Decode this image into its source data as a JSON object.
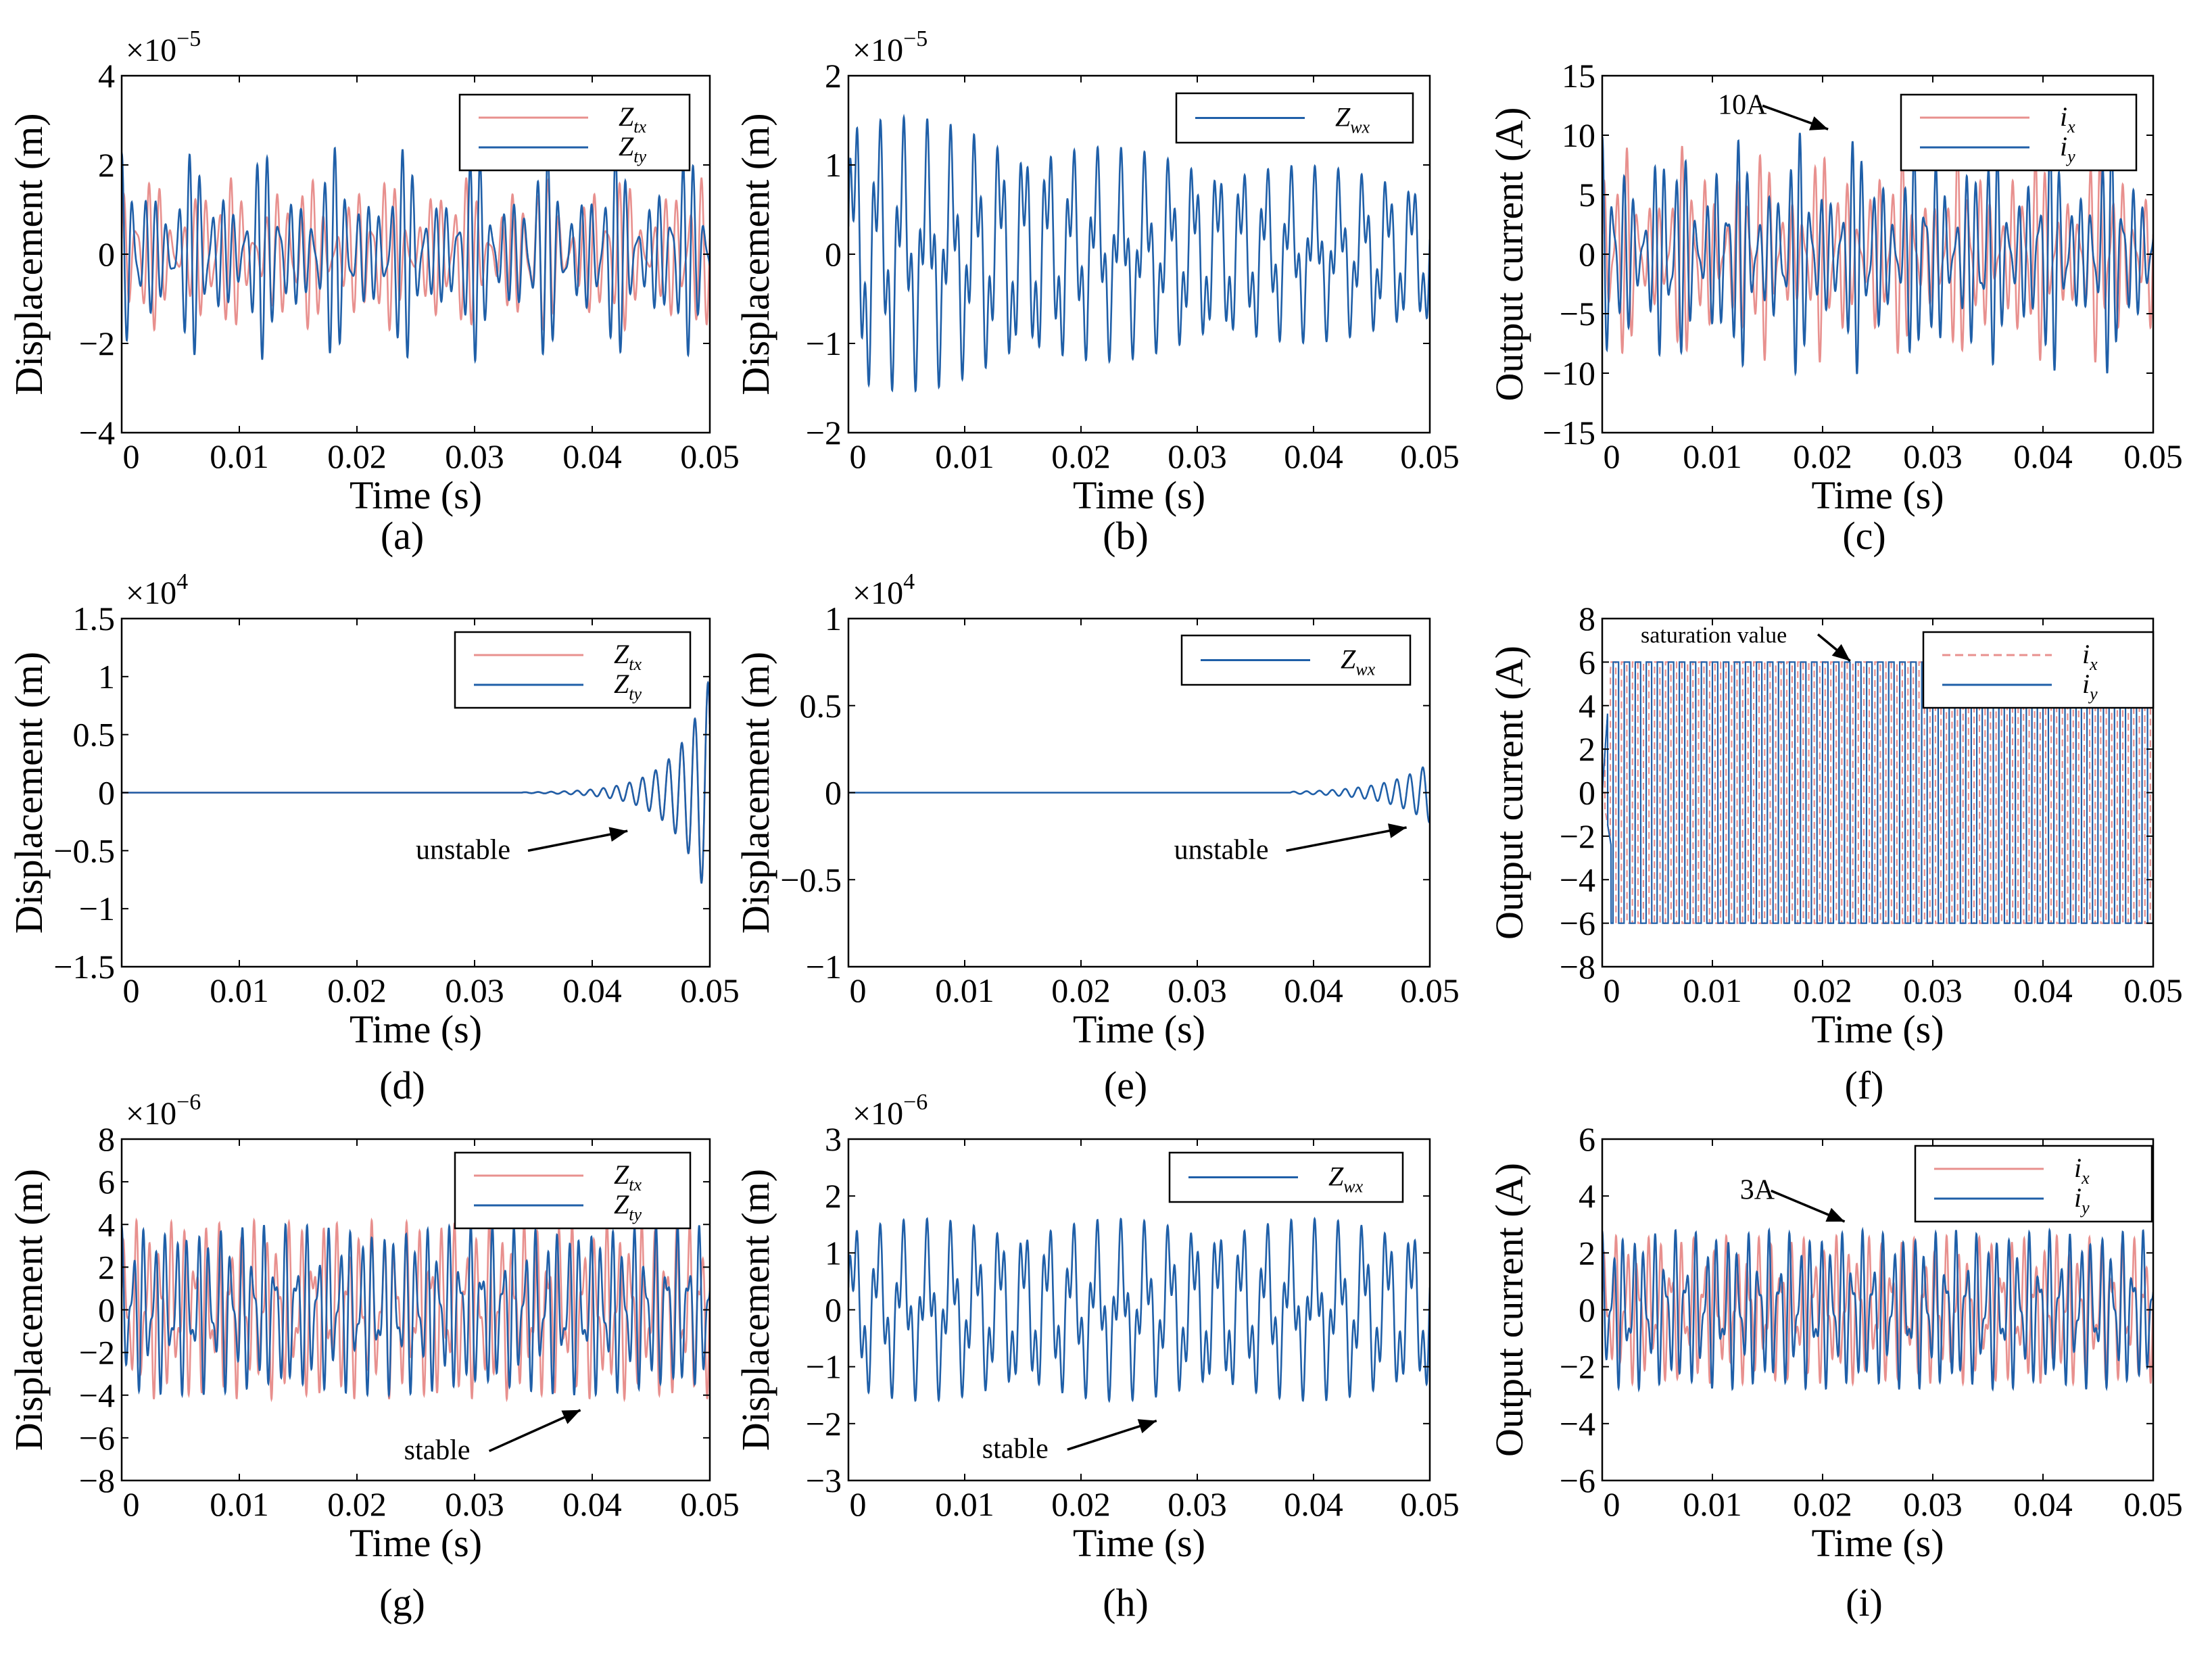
{
  "colors": {
    "red": "#e8908e",
    "blue": "#1f5fa8",
    "axis": "#000000"
  },
  "chart_data": [
    {
      "id": "a",
      "type": "line",
      "caption": "(a)",
      "xlabel": "Time (s)",
      "ylabel": "Displacement (m)",
      "multiplier": {
        "base": "×10",
        "exp": "−5"
      },
      "xlim": [
        0,
        0.05
      ],
      "ylim": [
        -4,
        4
      ],
      "xticks": [
        0,
        0.01,
        0.02,
        0.03,
        0.04,
        0.05
      ],
      "xtick_labels": [
        "0",
        "0.01",
        "0.02",
        "0.03",
        "0.04",
        "0.05"
      ],
      "yticks": [
        -4,
        -2,
        0,
        2,
        4
      ],
      "ytick_labels": [
        "−4",
        "−2",
        "0",
        "2",
        "4"
      ],
      "legend_position": "top-right",
      "series": [
        {
          "name": "Z_tx",
          "main": "Z",
          "sub": "tx",
          "color": "#e8908e",
          "style": "solid",
          "kind": "osc",
          "amp": 2.0,
          "f1": 1000,
          "f2": 1300,
          "beat": 150
        },
        {
          "name": "Z_ty",
          "main": "Z",
          "sub": "ty",
          "color": "#1f5fa8",
          "style": "solid",
          "kind": "osc",
          "amp": 2.4,
          "f1": 1050,
          "f2": 1380,
          "beat": 170
        }
      ],
      "annotations": []
    },
    {
      "id": "b",
      "type": "line",
      "caption": "(b)",
      "xlabel": "Time (s)",
      "ylabel": "Displacement (m)",
      "multiplier": {
        "base": "×10",
        "exp": "−5"
      },
      "xlim": [
        0,
        0.05
      ],
      "ylim": [
        -2,
        2
      ],
      "xticks": [
        0,
        0.01,
        0.02,
        0.03,
        0.04,
        0.05
      ],
      "xtick_labels": [
        "0",
        "0.01",
        "0.02",
        "0.03",
        "0.04",
        "0.05"
      ],
      "yticks": [
        -2,
        -1,
        0,
        1,
        2
      ],
      "ytick_labels": [
        "−2",
        "−1",
        "0",
        "1",
        "2"
      ],
      "legend_position": "top-right",
      "series": [
        {
          "name": "Z_wx",
          "main": "Z",
          "sub": "wx",
          "color": "#1f5fa8",
          "style": "solid",
          "kind": "decay",
          "amp": 1.7,
          "f1": 480,
          "f2": 1500,
          "decay": 28
        }
      ],
      "annotations": []
    },
    {
      "id": "c",
      "type": "line",
      "caption": "(c)",
      "xlabel": "Time (s)",
      "ylabel": "Output current (A)",
      "multiplier": null,
      "xlim": [
        0,
        0.05
      ],
      "ylim": [
        -15,
        15
      ],
      "xticks": [
        0,
        0.01,
        0.02,
        0.03,
        0.04,
        0.05
      ],
      "xtick_labels": [
        "0",
        "0.01",
        "0.02",
        "0.03",
        "0.04",
        "0.05"
      ],
      "yticks": [
        -15,
        -10,
        -5,
        0,
        5,
        10,
        15
      ],
      "ytick_labels": [
        "−15",
        "−10",
        "−5",
        "0",
        "5",
        "10",
        "15"
      ],
      "legend_position": "top-right",
      "series": [
        {
          "name": "i_x",
          "main": "i",
          "sub": "x",
          "color": "#e8908e",
          "style": "solid",
          "kind": "osc",
          "amp": 9.5,
          "f1": 1000,
          "f2": 1400,
          "beat": 160
        },
        {
          "name": "i_y",
          "main": "i",
          "sub": "y",
          "color": "#1f5fa8",
          "style": "solid",
          "kind": "osc",
          "amp": 10.5,
          "f1": 1060,
          "f2": 1450,
          "beat": 175
        }
      ],
      "annotations": [
        {
          "text": "10A",
          "tx": 0.0105,
          "ty": 11.8,
          "ax": 0.0205,
          "ay": 10.5
        }
      ]
    },
    {
      "id": "d",
      "type": "line",
      "caption": "(d)",
      "xlabel": "Time (s)",
      "ylabel": "Displacement (m)",
      "multiplier": {
        "base": "×10",
        "exp": "4"
      },
      "xlim": [
        0,
        0.05
      ],
      "ylim": [
        -1.5,
        1.5
      ],
      "xticks": [
        0,
        0.01,
        0.02,
        0.03,
        0.04,
        0.05
      ],
      "xtick_labels": [
        "0",
        "0.01",
        "0.02",
        "0.03",
        "0.04",
        "0.05"
      ],
      "yticks": [
        -1.5,
        -1,
        -0.5,
        0,
        0.5,
        1,
        1.5
      ],
      "ytick_labels": [
        "−1.5",
        "−1",
        "−0.5",
        "0",
        "0.5",
        "1",
        "1.5"
      ],
      "legend_position": "top-right",
      "series": [
        {
          "name": "Z_tx",
          "main": "Z",
          "sub": "tx",
          "color": "#e8908e",
          "style": "solid",
          "kind": "grow",
          "amp": 1.2,
          "f1": 900,
          "t0": 0.034,
          "tau": 0.0028
        },
        {
          "name": "Z_ty",
          "main": "Z",
          "sub": "ty",
          "color": "#1f5fa8",
          "style": "solid",
          "kind": "grow",
          "amp": 1.2,
          "f1": 900,
          "t0": 0.034,
          "tau": 0.0028
        }
      ],
      "annotations": [
        {
          "text": "unstable",
          "tx": 0.025,
          "ty": -0.57,
          "ax": 0.043,
          "ay": -0.33
        }
      ]
    },
    {
      "id": "e",
      "type": "line",
      "caption": "(e)",
      "xlabel": "Time (s)",
      "ylabel": "Displacement (m)",
      "multiplier": {
        "base": "×10",
        "exp": "4"
      },
      "xlim": [
        0,
        0.05
      ],
      "ylim": [
        -1,
        1
      ],
      "xticks": [
        0,
        0.01,
        0.02,
        0.03,
        0.04,
        0.05
      ],
      "xtick_labels": [
        "0",
        "0.01",
        "0.02",
        "0.03",
        "0.04",
        "0.05"
      ],
      "yticks": [
        -1,
        -0.5,
        0,
        0.5,
        1
      ],
      "ytick_labels": [
        "−1",
        "−0.5",
        "0",
        "0.5",
        "1"
      ],
      "legend_position": "top-right",
      "series": [
        {
          "name": "Z_wx",
          "main": "Z",
          "sub": "wx",
          "color": "#1f5fa8",
          "style": "solid",
          "kind": "grow",
          "amp": 0.2,
          "f1": 900,
          "t0": 0.038,
          "tau": 0.0035
        }
      ],
      "annotations": [
        {
          "text": "unstable",
          "tx": 0.028,
          "ty": -0.38,
          "ax": 0.048,
          "ay": -0.2
        }
      ]
    },
    {
      "id": "f",
      "type": "line",
      "caption": "(f)",
      "xlabel": "Time (s)",
      "ylabel": "Output current (A)",
      "multiplier": null,
      "xlim": [
        0,
        0.05
      ],
      "ylim": [
        -8,
        8
      ],
      "xticks": [
        0,
        0.01,
        0.02,
        0.03,
        0.04,
        0.05
      ],
      "xtick_labels": [
        "0",
        "0.01",
        "0.02",
        "0.03",
        "0.04",
        "0.05"
      ],
      "yticks": [
        -8,
        -6,
        -4,
        -2,
        0,
        2,
        4,
        6,
        8
      ],
      "ytick_labels": [
        "−8",
        "−6",
        "−4",
        "−2",
        "0",
        "2",
        "4",
        "6",
        "8"
      ],
      "legend_position": "top-right",
      "series": [
        {
          "name": "i_x",
          "main": "i",
          "sub": "x",
          "color": "#e8908e",
          "style": "dashed",
          "kind": "square",
          "amp": 6,
          "f1": 1000,
          "phase": 0.25
        },
        {
          "name": "i_y",
          "main": "i",
          "sub": "y",
          "color": "#1f5fa8",
          "style": "solid",
          "kind": "square",
          "amp": 6,
          "f1": 1000,
          "phase": 0
        }
      ],
      "annotations": [
        {
          "text": "saturation value",
          "tx": 0.0035,
          "ty": 6.9,
          "ax": 0.0225,
          "ay": 6.05,
          "small": true
        }
      ]
    },
    {
      "id": "g",
      "type": "line",
      "caption": "(g)",
      "xlabel": "Time (s)",
      "ylabel": "Displacement (m)",
      "multiplier": {
        "base": "×10",
        "exp": "−6"
      },
      "xlim": [
        0,
        0.05
      ],
      "ylim": [
        -8,
        8
      ],
      "xticks": [
        0,
        0.01,
        0.02,
        0.03,
        0.04,
        0.05
      ],
      "xtick_labels": [
        "0",
        "0.01",
        "0.02",
        "0.03",
        "0.04",
        "0.05"
      ],
      "yticks": [
        -8,
        -6,
        -4,
        -2,
        0,
        2,
        4,
        6,
        8
      ],
      "ytick_labels": [
        "−8",
        "−6",
        "−4",
        "−2",
        "0",
        "2",
        "4",
        "6",
        "8"
      ],
      "legend_position": "top-right",
      "series": [
        {
          "name": "Z_tx",
          "main": "Z",
          "sub": "tx",
          "color": "#e8908e",
          "style": "solid",
          "kind": "osc",
          "amp": 4.2,
          "f1": 1000,
          "f2": 1700,
          "beat": 0
        },
        {
          "name": "Z_ty",
          "main": "Z",
          "sub": "ty",
          "color": "#1f5fa8",
          "style": "solid",
          "kind": "osc",
          "amp": 4.0,
          "f1": 1080,
          "f2": 1650,
          "beat": 0
        }
      ],
      "annotations": [
        {
          "text": "stable",
          "tx": 0.024,
          "ty": -7.0,
          "ax": 0.039,
          "ay": -4.7
        }
      ]
    },
    {
      "id": "h",
      "type": "line",
      "caption": "(h)",
      "xlabel": "Time (s)",
      "ylabel": "Displacement (m)",
      "multiplier": {
        "base": "×10",
        "exp": "−6"
      },
      "xlim": [
        0,
        0.05
      ],
      "ylim": [
        -3,
        3
      ],
      "xticks": [
        0,
        0.01,
        0.02,
        0.03,
        0.04,
        0.05
      ],
      "xtick_labels": [
        "0",
        "0.01",
        "0.02",
        "0.03",
        "0.04",
        "0.05"
      ],
      "yticks": [
        -3,
        -2,
        -1,
        0,
        1,
        2,
        3
      ],
      "ytick_labels": [
        "−3",
        "−2",
        "−1",
        "0",
        "1",
        "2",
        "3"
      ],
      "legend_position": "top-right",
      "series": [
        {
          "name": "Z_wx",
          "main": "Z",
          "sub": "wx",
          "color": "#1f5fa8",
          "style": "solid",
          "kind": "osc",
          "amp": 1.6,
          "f1": 480,
          "f2": 1500,
          "beat": 0
        }
      ],
      "annotations": [
        {
          "text": "stable",
          "tx": 0.0115,
          "ty": -2.6,
          "ax": 0.0265,
          "ay": -1.95
        }
      ]
    },
    {
      "id": "i",
      "type": "line",
      "caption": "(i)",
      "xlabel": "Time (s)",
      "ylabel": "Output current (A)",
      "multiplier": null,
      "xlim": [
        0,
        0.05
      ],
      "ylim": [
        -6,
        6
      ],
      "xticks": [
        0,
        0.01,
        0.02,
        0.03,
        0.04,
        0.05
      ],
      "xtick_labels": [
        "0",
        "0.01",
        "0.02",
        "0.03",
        "0.04",
        "0.05"
      ],
      "yticks": [
        -6,
        -4,
        -2,
        0,
        2,
        4,
        6
      ],
      "ytick_labels": [
        "−6",
        "−4",
        "−2",
        "0",
        "2",
        "4",
        "6"
      ],
      "legend_position": "top-right",
      "series": [
        {
          "name": "i_x",
          "main": "i",
          "sub": "x",
          "color": "#e8908e",
          "style": "solid",
          "kind": "osc",
          "amp": 2.6,
          "f1": 1000,
          "f2": 1700,
          "beat": 0
        },
        {
          "name": "i_y",
          "main": "i",
          "sub": "y",
          "color": "#1f5fa8",
          "style": "solid",
          "kind": "osc",
          "amp": 2.8,
          "f1": 1060,
          "f2": 1650,
          "beat": 0
        }
      ],
      "annotations": [
        {
          "text": "3A",
          "tx": 0.0125,
          "ty": 3.9,
          "ax": 0.022,
          "ay": 3.1
        }
      ]
    }
  ]
}
